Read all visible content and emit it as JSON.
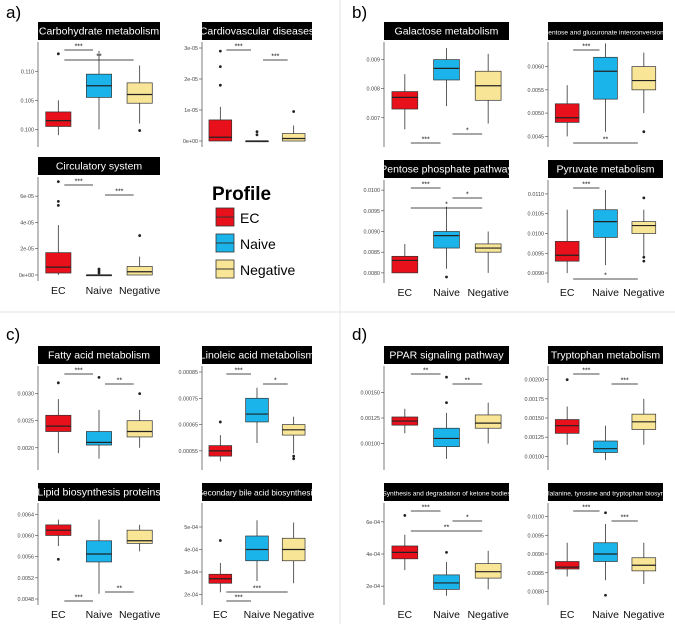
{
  "groups": [
    "EC",
    "Naive",
    "Negative"
  ],
  "colors": {
    "EC": "#e8101a",
    "Naive": "#1ab4ea",
    "Negative": "#f8e596"
  },
  "legend": {
    "title": "Profile",
    "items": [
      "EC",
      "Naive",
      "Negative"
    ]
  },
  "section_labels": [
    "a)",
    "b)",
    "c)",
    "d)"
  ],
  "chart_data": [
    {
      "type": "box",
      "section": "a)",
      "title": "Carbohydrate metabolism",
      "yticks": [
        "0.100",
        "0.105",
        "0.110"
      ],
      "ylim": [
        0.098,
        0.114
      ],
      "boxes": [
        {
          "group": "EC",
          "lo": 0.099,
          "q1": 0.1005,
          "med": 0.1015,
          "q3": 0.103,
          "hi": 0.105,
          "out": [
            0.113
          ]
        },
        {
          "group": "Naive",
          "lo": 0.1,
          "q1": 0.1055,
          "med": 0.1075,
          "q3": 0.1095,
          "hi": 0.1135,
          "out": []
        },
        {
          "group": "Negative",
          "lo": 0.101,
          "q1": 0.1045,
          "med": 0.106,
          "q3": 0.108,
          "hi": 0.111,
          "out": [
            0.0998
          ]
        }
      ],
      "sig": [
        {
          "a": "EC",
          "b": "Naive",
          "label": "***"
        },
        {
          "a": "EC",
          "b": "Negative",
          "label": "**"
        }
      ]
    },
    {
      "type": "box",
      "section": "a)",
      "title": "Cardiovascular diseases",
      "yticks": [
        "0e+00",
        "1e-05",
        "2e-05",
        "3e-05"
      ],
      "ylim": [
        0,
        3e-05
      ],
      "boxes": [
        {
          "group": "EC",
          "lo": 0.0,
          "q1": 0.0,
          "med": 1.2e-06,
          "q3": 6.8e-06,
          "hi": 1.1e-05,
          "out": [
            1.8e-05,
            2.4e-05,
            2.9e-05
          ]
        },
        {
          "group": "Naive",
          "lo": 0.0,
          "q1": 0.0,
          "med": 0.0,
          "q3": 0.0,
          "hi": 0.0,
          "out": [
            2e-06,
            3e-06
          ]
        },
        {
          "group": "Negative",
          "lo": 0.0,
          "q1": 0.0,
          "med": 8e-07,
          "q3": 2.4e-06,
          "hi": 5e-06,
          "out": [
            9.5e-06
          ]
        }
      ],
      "sig": [
        {
          "a": "EC",
          "b": "Naive",
          "label": "***"
        },
        {
          "a": "Naive",
          "b": "Negative",
          "label": "***"
        }
      ]
    },
    {
      "type": "box",
      "section": "a)",
      "title": "Circulatory system",
      "yticks": [
        "0e+00",
        "2e-05",
        "4e-05",
        "6e-05"
      ],
      "ylim": [
        0,
        7e-05
      ],
      "boxes": [
        {
          "group": "EC",
          "lo": 0.0,
          "q1": 1.5e-06,
          "med": 6e-06,
          "q3": 1.7e-05,
          "hi": 3.8e-05,
          "out": [
            5.3e-05,
            5.6e-05,
            7.1e-05
          ]
        },
        {
          "group": "Naive",
          "lo": 0.0,
          "q1": 0.0,
          "med": 0.0,
          "q3": 0.0,
          "hi": 0.0,
          "out": [
            1.5e-06,
            3e-06,
            4.5e-06
          ]
        },
        {
          "group": "Negative",
          "lo": 0.0,
          "q1": 0.0,
          "med": 2.5e-06,
          "q3": 6.5e-06,
          "hi": 1.4e-05,
          "out": [
            3e-05
          ]
        }
      ],
      "sig": [
        {
          "a": "EC",
          "b": "Naive",
          "label": "***"
        },
        {
          "a": "Naive",
          "b": "Negative",
          "label": "***"
        }
      ]
    },
    {
      "type": "box",
      "section": "b)",
      "title": "Galactose metabolism",
      "yticks": [
        "0.007",
        "0.008",
        "0.009"
      ],
      "ylim": [
        0.0062,
        0.0094
      ],
      "boxes": [
        {
          "group": "EC",
          "lo": 0.0066,
          "q1": 0.0073,
          "med": 0.0077,
          "q3": 0.0079,
          "hi": 0.0085,
          "out": []
        },
        {
          "group": "Naive",
          "lo": 0.0074,
          "q1": 0.0083,
          "med": 0.0087,
          "q3": 0.009,
          "hi": 0.0094,
          "out": []
        },
        {
          "group": "Negative",
          "lo": 0.0068,
          "q1": 0.0076,
          "med": 0.0081,
          "q3": 0.0086,
          "hi": 0.0092,
          "out": []
        }
      ],
      "sig": [
        {
          "a": "EC",
          "b": "Naive",
          "label": "***",
          "below": true
        },
        {
          "a": "Naive",
          "b": "Negative",
          "label": "*",
          "below": true
        }
      ]
    },
    {
      "type": "box",
      "section": "b)",
      "title": "Pentose and glucuronate interconversions",
      "yticks": [
        "0.0045",
        "0.0050",
        "0.0055",
        "0.0060"
      ],
      "ylim": [
        0.0044,
        0.0064
      ],
      "boxes": [
        {
          "group": "EC",
          "lo": 0.0045,
          "q1": 0.0048,
          "med": 0.0049,
          "q3": 0.0052,
          "hi": 0.0056,
          "out": []
        },
        {
          "group": "Naive",
          "lo": 0.0046,
          "q1": 0.0053,
          "med": 0.0059,
          "q3": 0.0062,
          "hi": 0.0065,
          "out": []
        },
        {
          "group": "Negative",
          "lo": 0.005,
          "q1": 0.0055,
          "med": 0.0057,
          "q3": 0.006,
          "hi": 0.0063,
          "out": [
            0.0046
          ]
        }
      ],
      "sig": [
        {
          "a": "EC",
          "b": "Naive",
          "label": "***"
        },
        {
          "a": "EC",
          "b": "Negative",
          "label": "**",
          "below": true
        }
      ]
    },
    {
      "type": "box",
      "section": "b)",
      "title": "Pentose phosphate pathway",
      "yticks": [
        "0.0080",
        "0.0085",
        "0.0090",
        "0.0095",
        "0.0100"
      ],
      "ylim": [
        0.0079,
        0.0101
      ],
      "boxes": [
        {
          "group": "EC",
          "lo": 0.008,
          "q1": 0.008,
          "med": 0.0083,
          "q3": 0.0084,
          "hi": 0.0087,
          "out": []
        },
        {
          "group": "Naive",
          "lo": 0.0081,
          "q1": 0.0086,
          "med": 0.0089,
          "q3": 0.009,
          "hi": 0.0096,
          "out": [
            0.0079
          ]
        },
        {
          "group": "Negative",
          "lo": 0.008,
          "q1": 0.0085,
          "med": 0.0086,
          "q3": 0.0087,
          "hi": 0.009,
          "out": []
        }
      ],
      "sig": [
        {
          "a": "EC",
          "b": "Naive",
          "label": "***"
        },
        {
          "a": "Naive",
          "b": "Negative",
          "label": "*"
        },
        {
          "a": "EC",
          "b": "Negative",
          "label": "*"
        }
      ]
    },
    {
      "type": "box",
      "section": "b)",
      "title": "Pyruvate metabolism",
      "yticks": [
        "0.0090",
        "0.0095",
        "0.0100",
        "0.0105",
        "0.0110"
      ],
      "ylim": [
        0.0089,
        0.0112
      ],
      "boxes": [
        {
          "group": "EC",
          "lo": 0.009,
          "q1": 0.0093,
          "med": 0.00945,
          "q3": 0.0098,
          "hi": 0.0106,
          "out": []
        },
        {
          "group": "Naive",
          "lo": 0.0092,
          "q1": 0.0099,
          "med": 0.0103,
          "q3": 0.0106,
          "hi": 0.0111,
          "out": []
        },
        {
          "group": "Negative",
          "lo": 0.0094,
          "q1": 0.01,
          "med": 0.0102,
          "q3": 0.0103,
          "hi": 0.0106,
          "out": [
            0.0093,
            0.0094,
            0.0109
          ]
        }
      ],
      "sig": [
        {
          "a": "EC",
          "b": "Naive",
          "label": "***"
        },
        {
          "a": "EC",
          "b": "Negative",
          "label": "*",
          "below": true
        }
      ]
    },
    {
      "type": "box",
      "section": "c)",
      "title": "Fatty acid metabolism",
      "yticks": [
        "0.0020",
        "0.0025",
        "0.0030"
      ],
      "ylim": [
        0.0017,
        0.0034
      ],
      "boxes": [
        {
          "group": "EC",
          "lo": 0.0019,
          "q1": 0.0023,
          "med": 0.0024,
          "q3": 0.0026,
          "hi": 0.0029,
          "out": [
            0.0032
          ]
        },
        {
          "group": "Naive",
          "lo": 0.0018,
          "q1": 0.00205,
          "med": 0.0021,
          "q3": 0.0023,
          "hi": 0.0027,
          "out": [
            0.0033
          ]
        },
        {
          "group": "Negative",
          "lo": 0.002,
          "q1": 0.0022,
          "med": 0.0023,
          "q3": 0.0025,
          "hi": 0.0027,
          "out": [
            0.003
          ]
        }
      ],
      "sig": [
        {
          "a": "EC",
          "b": "Naive",
          "label": "***"
        },
        {
          "a": "Naive",
          "b": "Negative",
          "label": "**"
        }
      ]
    },
    {
      "type": "box",
      "section": "c)",
      "title": "Linoleic acid metabolism",
      "yticks": [
        "0.00055",
        "0.00065",
        "0.00075",
        "0.00085"
      ],
      "ylim": [
        0.0005,
        0.00085
      ],
      "boxes": [
        {
          "group": "EC",
          "lo": 0.00051,
          "q1": 0.00053,
          "med": 0.00055,
          "q3": 0.00057,
          "hi": 0.00061,
          "out": [
            0.00066
          ]
        },
        {
          "group": "Naive",
          "lo": 0.00058,
          "q1": 0.00066,
          "med": 0.00069,
          "q3": 0.00075,
          "hi": 0.00079,
          "out": []
        },
        {
          "group": "Negative",
          "lo": 0.00054,
          "q1": 0.00061,
          "med": 0.00063,
          "q3": 0.00065,
          "hi": 0.00068,
          "out": [
            0.00052,
            0.00053
          ]
        }
      ],
      "sig": [
        {
          "a": "EC",
          "b": "Naive",
          "label": "***"
        },
        {
          "a": "Naive",
          "b": "Negative",
          "label": "*"
        }
      ]
    },
    {
      "type": "box",
      "section": "c)",
      "title": "Lipid biosynthesis proteins",
      "yticks": [
        "0.0048",
        "0.0052",
        "0.0056",
        "0.0060",
        "0.0064"
      ],
      "ylim": [
        0.0048,
        0.0065
      ],
      "boxes": [
        {
          "group": "EC",
          "lo": 0.0058,
          "q1": 0.006,
          "med": 0.0061,
          "q3": 0.0062,
          "hi": 0.0063,
          "out": [
            0.00555
          ]
        },
        {
          "group": "Naive",
          "lo": 0.0049,
          "q1": 0.0055,
          "med": 0.00565,
          "q3": 0.0059,
          "hi": 0.0063,
          "out": []
        },
        {
          "group": "Negative",
          "lo": 0.0057,
          "q1": 0.00585,
          "med": 0.0059,
          "q3": 0.0061,
          "hi": 0.0062,
          "out": []
        }
      ],
      "sig": [
        {
          "a": "EC",
          "b": "Naive",
          "label": "***",
          "below": true
        },
        {
          "a": "Naive",
          "b": "Negative",
          "label": "**",
          "below": true
        }
      ]
    },
    {
      "type": "box",
      "section": "c)",
      "title": "Secondary bile acid biosynthesis",
      "yticks": [
        "2e-04",
        "3e-04",
        "4e-04",
        "5e-04"
      ],
      "ylim": [
        0.00018,
        0.00058
      ],
      "boxes": [
        {
          "group": "EC",
          "lo": 0.00021,
          "q1": 0.00025,
          "med": 0.00027,
          "q3": 0.00029,
          "hi": 0.00034,
          "out": [
            0.00044
          ]
        },
        {
          "group": "Naive",
          "lo": 0.00026,
          "q1": 0.00035,
          "med": 0.0004,
          "q3": 0.00046,
          "hi": 0.00053,
          "out": []
        },
        {
          "group": "Negative",
          "lo": 0.00025,
          "q1": 0.00035,
          "med": 0.0004,
          "q3": 0.00045,
          "hi": 0.00052,
          "out": []
        }
      ],
      "sig": [
        {
          "a": "EC",
          "b": "Naive",
          "label": "***",
          "below": true
        },
        {
          "a": "EC",
          "b": "Negative",
          "label": "***",
          "below": true
        }
      ]
    },
    {
      "type": "box",
      "section": "d)",
      "title": "PPAR signaling pathway",
      "yticks": [
        "0.00100",
        "0.00125",
        "0.00150"
      ],
      "ylim": [
        0.0008,
        0.0017
      ],
      "boxes": [
        {
          "group": "EC",
          "lo": 0.0011,
          "q1": 0.00118,
          "med": 0.00122,
          "q3": 0.00126,
          "hi": 0.00134,
          "out": []
        },
        {
          "group": "Naive",
          "lo": 0.00085,
          "q1": 0.00097,
          "med": 0.00105,
          "q3": 0.00115,
          "hi": 0.0013,
          "out": [
            0.0014,
            0.00165
          ]
        },
        {
          "group": "Negative",
          "lo": 0.001,
          "q1": 0.00115,
          "med": 0.0012,
          "q3": 0.00128,
          "hi": 0.0014,
          "out": []
        }
      ],
      "sig": [
        {
          "a": "EC",
          "b": "Naive",
          "label": "**"
        },
        {
          "a": "Naive",
          "b": "Negative",
          "label": "**"
        }
      ]
    },
    {
      "type": "box",
      "section": "d)",
      "title": "Tryptophan metabolism",
      "yticks": [
        "0.00100",
        "0.00125",
        "0.00150",
        "0.00175",
        "0.00200"
      ],
      "ylim": [
        0.0009,
        0.0021
      ],
      "boxes": [
        {
          "group": "EC",
          "lo": 0.00115,
          "q1": 0.0013,
          "med": 0.0014,
          "q3": 0.00148,
          "hi": 0.00165,
          "out": [
            0.002
          ]
        },
        {
          "group": "Naive",
          "lo": 0.00095,
          "q1": 0.00105,
          "med": 0.0011,
          "q3": 0.0012,
          "hi": 0.0014,
          "out": []
        },
        {
          "group": "Negative",
          "lo": 0.00115,
          "q1": 0.00135,
          "med": 0.00145,
          "q3": 0.00155,
          "hi": 0.00175,
          "out": []
        }
      ],
      "sig": [
        {
          "a": "EC",
          "b": "Naive",
          "label": "***"
        },
        {
          "a": "Naive",
          "b": "Negative",
          "label": "***"
        }
      ]
    },
    {
      "type": "box",
      "section": "d)",
      "title": "Synthesis and degradation of ketone bodies",
      "yticks": [
        "2e-04",
        "4e-04",
        "6e-04"
      ],
      "ylim": [
        0.00012,
        0.00068
      ],
      "boxes": [
        {
          "group": "EC",
          "lo": 0.0003,
          "q1": 0.00037,
          "med": 0.00041,
          "q3": 0.00045,
          "hi": 0.00052,
          "out": [
            0.00064
          ]
        },
        {
          "group": "Naive",
          "lo": 0.00014,
          "q1": 0.00018,
          "med": 0.00022,
          "q3": 0.00027,
          "hi": 0.00035,
          "out": [
            0.00041
          ]
        },
        {
          "group": "Negative",
          "lo": 0.00018,
          "q1": 0.00025,
          "med": 0.00029,
          "q3": 0.00034,
          "hi": 0.00042,
          "out": []
        }
      ],
      "sig": [
        {
          "a": "EC",
          "b": "Naive",
          "label": "***"
        },
        {
          "a": "Naive",
          "b": "Negative",
          "label": "*"
        },
        {
          "a": "EC",
          "b": "Negative",
          "label": "**"
        }
      ]
    },
    {
      "type": "box",
      "section": "d)",
      "title": "Phenylalanine, tyrosine and tryptophan biosynthesis",
      "yticks": [
        "0.0080",
        "0.0085",
        "0.0090",
        "0.0095",
        "0.0100"
      ],
      "ylim": [
        0.0078,
        0.0102
      ],
      "boxes": [
        {
          "group": "EC",
          "lo": 0.0084,
          "q1": 0.0086,
          "med": 0.00865,
          "q3": 0.0088,
          "hi": 0.0093,
          "out": []
        },
        {
          "group": "Naive",
          "lo": 0.0083,
          "q1": 0.0088,
          "med": 0.009,
          "q3": 0.0093,
          "hi": 0.0098,
          "out": [
            0.0079,
            0.0101
          ]
        },
        {
          "group": "Negative",
          "lo": 0.0082,
          "q1": 0.00855,
          "med": 0.0087,
          "q3": 0.0089,
          "hi": 0.0093,
          "out": []
        }
      ],
      "sig": [
        {
          "a": "EC",
          "b": "Naive",
          "label": "***"
        },
        {
          "a": "Naive",
          "b": "Negative",
          "label": "***"
        }
      ]
    }
  ]
}
